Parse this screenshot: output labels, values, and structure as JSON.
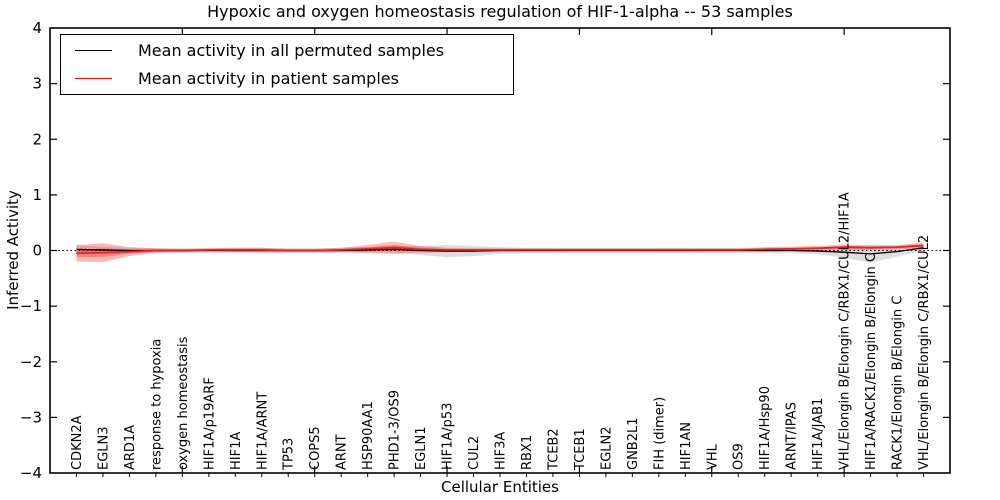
{
  "title": "Hypoxic and oxygen homeostasis regulation of HIF-1-alpha -- 53 samples",
  "legend": {
    "items": [
      {
        "label": "Mean activity in all permuted samples",
        "color": "#000000"
      },
      {
        "label": "Mean activity in patient samples",
        "color": "#ff0000"
      }
    ]
  },
  "axes": {
    "ylabel": "Inferred Activity",
    "xlabel": "Cellular Entities",
    "ylim": [
      -4,
      4
    ],
    "ytick_labels": [
      "4",
      "3",
      "2",
      "1",
      "0",
      "−1",
      "−2",
      "−3",
      "−4"
    ],
    "ytick_values": [
      4,
      3,
      2,
      1,
      0,
      -1,
      -2,
      -3,
      -4
    ],
    "x_major_tick_units": [
      5,
      10,
      15,
      20,
      25,
      30
    ],
    "grid": false,
    "legend_position": "upper-left"
  },
  "colors": {
    "permuted_line": "#000000",
    "permuted_band": "#a8a8a8",
    "patient_line": "#e82222",
    "patient_band": "#ff0000",
    "zero_line": "#000000",
    "frame": "#000000"
  },
  "chart_data": {
    "type": "line",
    "title": "Hypoxic and oxygen homeostasis regulation of HIF-1-alpha -- 53 samples",
    "xlabel": "Cellular Entities",
    "ylabel": "Inferred Activity",
    "ylim": [
      -4,
      4
    ],
    "reference_line_y": 0,
    "categories": [
      "CDKN2A",
      "EGLN3",
      "ARD1A",
      "response to hypoxia",
      "oxygen homeostasis",
      "HIF1A/p19ARF",
      "HIF1A",
      "HIF1A/ARNT",
      "TP53",
      "COPS5",
      "ARNT",
      "HSP90AA1",
      "PHD1-3/OS9",
      "EGLN1",
      "HIF1A/p53",
      "CUL2",
      "HIF3A",
      "RBX1",
      "TCEB2",
      "TCEB1",
      "EGLN2",
      "GNB2L1",
      "FIH (dimer)",
      "HIF1AN",
      "VHL",
      "OS9",
      "HIF1A/Hsp90",
      "ARNT/IPAS",
      "HIF1A/JAB1",
      "VHL/Elongin B/Elongin C/RBX1/CUL2/HIF1A",
      "HIF1A/RACK1/Elongin B/Elongin C",
      "RACK1/Elongin B/Elongin C",
      "VHL/Elongin B/Elongin C/RBX1/CUL2"
    ],
    "series": [
      {
        "name": "Mean activity in all permuted samples",
        "values": [
          0.02,
          0.01,
          0.0,
          0.0,
          0.0,
          0.0,
          0.0,
          0.0,
          0.0,
          0.0,
          0.0,
          0.01,
          0.02,
          0.0,
          -0.01,
          -0.01,
          0.0,
          0.0,
          0.0,
          0.0,
          0.0,
          0.0,
          0.0,
          0.0,
          0.0,
          0.0,
          0.0,
          0.0,
          -0.01,
          -0.03,
          -0.06,
          -0.02,
          0.05
        ],
        "band_halfwidth": [
          0.07,
          0.06,
          0.05,
          0.04,
          0.04,
          0.04,
          0.05,
          0.05,
          0.04,
          0.04,
          0.05,
          0.05,
          0.06,
          0.08,
          0.11,
          0.09,
          0.06,
          0.05,
          0.05,
          0.04,
          0.04,
          0.04,
          0.05,
          0.05,
          0.04,
          0.04,
          0.05,
          0.05,
          0.06,
          0.1,
          0.16,
          0.09,
          0.05
        ]
      },
      {
        "name": "Mean activity in patient samples",
        "values": [
          -0.05,
          -0.04,
          -0.02,
          0.0,
          0.0,
          0.01,
          0.01,
          0.01,
          0.0,
          0.0,
          0.01,
          0.03,
          0.05,
          0.02,
          0.01,
          0.01,
          0.01,
          0.01,
          0.01,
          0.01,
          0.01,
          0.01,
          0.01,
          0.01,
          0.01,
          0.01,
          0.02,
          0.03,
          0.04,
          0.06,
          0.05,
          0.06,
          0.09
        ],
        "band_halfwidth": [
          0.15,
          0.17,
          0.08,
          0.04,
          0.03,
          0.03,
          0.04,
          0.04,
          0.03,
          0.03,
          0.04,
          0.07,
          0.11,
          0.06,
          0.04,
          0.03,
          0.03,
          0.03,
          0.03,
          0.03,
          0.03,
          0.03,
          0.03,
          0.03,
          0.03,
          0.03,
          0.04,
          0.04,
          0.04,
          0.05,
          0.04,
          0.04,
          0.05
        ]
      }
    ]
  }
}
